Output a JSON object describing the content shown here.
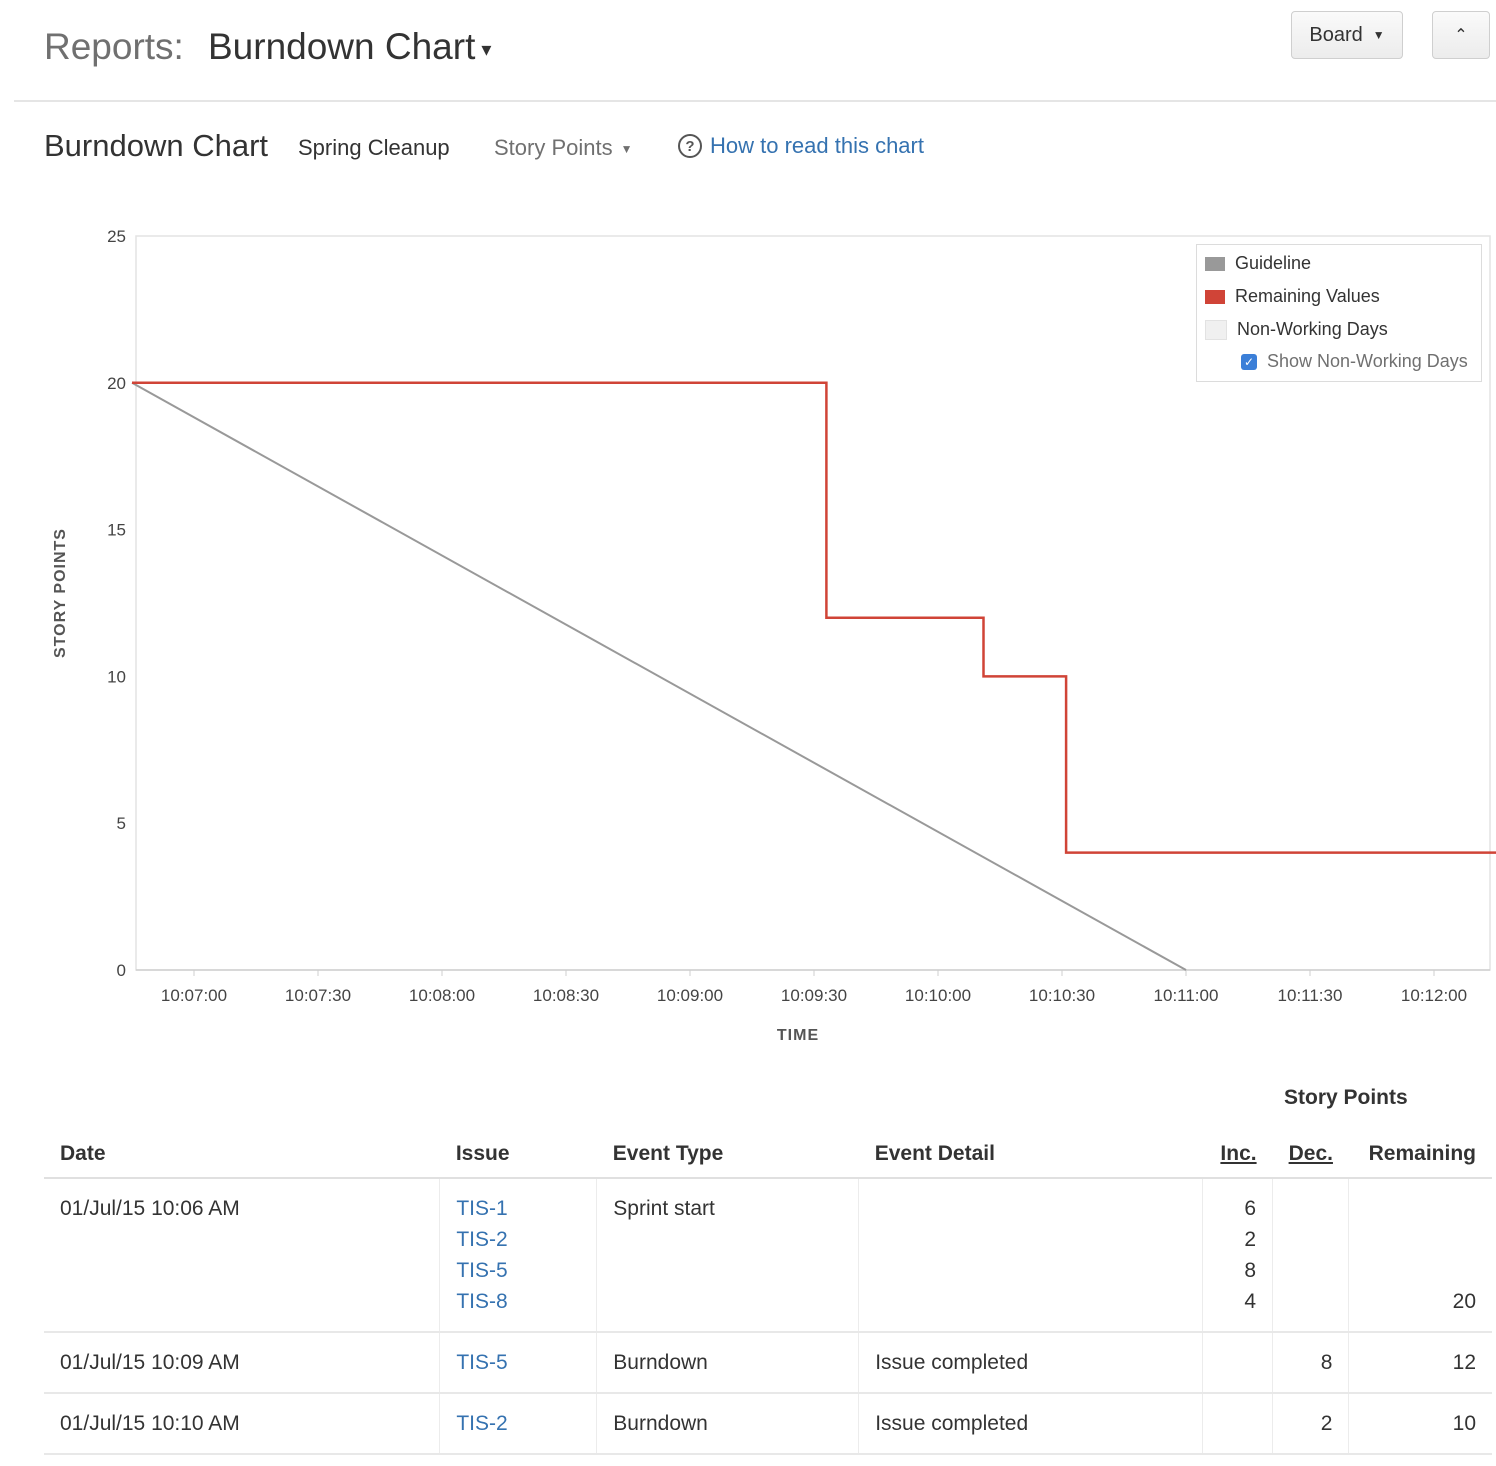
{
  "header": {
    "crumb": "Reports:",
    "report_name": "Burndown Chart",
    "board_button": "Board",
    "collapse_glyph": "«"
  },
  "subheader": {
    "title": "Burndown Chart",
    "sprint": "Spring Cleanup",
    "metric": "Story Points",
    "help_link": "How to read this chart"
  },
  "legend": {
    "guideline": "Guideline",
    "remaining": "Remaining Values",
    "nonworking": "Non-Working Days",
    "show_nonworking": "Show Non-Working Days",
    "show_nonworking_checked": true
  },
  "colors": {
    "guideline": "#999999",
    "remaining": "#d04437",
    "nonworking": "#f0f0f0",
    "link": "#3572b0"
  },
  "chart_data": {
    "type": "line",
    "xlabel": "TIME",
    "ylabel": "STORY POINTS",
    "ylim": [
      0,
      25
    ],
    "yticks": [
      0,
      5,
      10,
      15,
      20,
      25
    ],
    "x_tick_labels": [
      "10:07:00",
      "10:07:30",
      "10:08:00",
      "10:08:30",
      "10:09:00",
      "10:09:30",
      "10:10:00",
      "10:10:30",
      "10:11:00",
      "10:11:30",
      "10:12:00"
    ],
    "series": [
      {
        "name": "Guideline",
        "points": [
          [
            "10:06:45",
            20
          ],
          [
            "10:11:00",
            0
          ]
        ]
      },
      {
        "name": "Remaining Values",
        "step": true,
        "points": [
          [
            "10:06:45",
            20
          ],
          [
            "10:09:33",
            20
          ],
          [
            "10:09:33",
            12
          ],
          [
            "10:10:11",
            12
          ],
          [
            "10:10:11",
            10
          ],
          [
            "10:10:31",
            10
          ],
          [
            "10:10:31",
            4
          ],
          [
            "10:12:15",
            4
          ]
        ]
      }
    ],
    "grid": false,
    "legend_position": "top-right"
  },
  "table": {
    "group_header": "Story Points",
    "columns": {
      "date": "Date",
      "issue": "Issue",
      "event_type": "Event Type",
      "event_detail": "Event Detail",
      "inc": "Inc.",
      "dec": "Dec.",
      "remaining": "Remaining"
    },
    "rows": [
      {
        "date": "01/Jul/15 10:06 AM",
        "issues": [
          "TIS-1",
          "TIS-2",
          "TIS-5",
          "TIS-8"
        ],
        "event_type": "Sprint start",
        "event_detail": "",
        "inc": [
          "6",
          "2",
          "8",
          "4"
        ],
        "dec": "",
        "remaining": "20"
      },
      {
        "date": "01/Jul/15 10:09 AM",
        "issues": [
          "TIS-5"
        ],
        "event_type": "Burndown",
        "event_detail": "Issue completed",
        "inc": [],
        "dec": "8",
        "remaining": "12"
      },
      {
        "date": "01/Jul/15 10:10 AM",
        "issues": [
          "TIS-2"
        ],
        "event_type": "Burndown",
        "event_detail": "Issue completed",
        "inc": [],
        "dec": "2",
        "remaining": "10"
      }
    ]
  }
}
